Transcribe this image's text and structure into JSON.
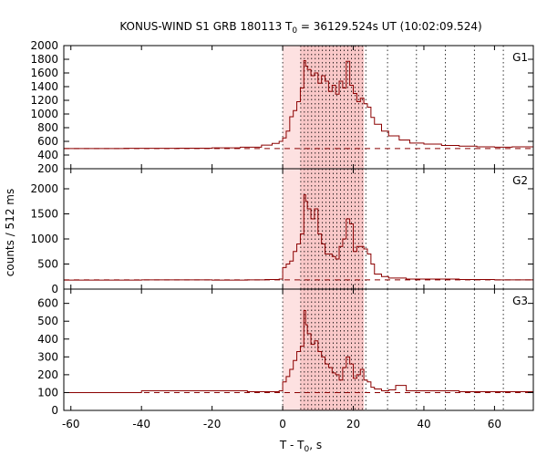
{
  "chart_data": {
    "type": "line",
    "title_main": "KONUS-WIND S1 GRB 180113 T",
    "title_sub": "0",
    "title_rest": " = 36129.524s UT (10:02:09.524)",
    "ylabel": "counts / 512 ms",
    "xlabel_main": "T - T",
    "xlabel_sub": "0",
    "xlabel_rest": ", s",
    "xlim": [
      -62,
      71
    ],
    "x_ticks": [
      -60,
      -40,
      -20,
      0,
      20,
      40,
      60
    ],
    "x_tick_labels": [
      "-60",
      "-40",
      "-20",
      "0",
      "20",
      "40",
      "60"
    ],
    "shaded_interval": [
      0.0,
      23.0
    ],
    "highlight_interval": [
      5.0,
      23.0
    ],
    "grid_lines_x": [
      0.0,
      5.12,
      6.14,
      7.17,
      8.19,
      9.22,
      10.24,
      11.26,
      12.29,
      13.31,
      14.34,
      15.36,
      16.38,
      17.41,
      18.43,
      19.46,
      20.48,
      21.5,
      22.53,
      23.55,
      29.7,
      37.9,
      46.1,
      54.3,
      62.5
    ],
    "line_color": "#8b0000",
    "shade_color": "#fde1e1",
    "highlight_color": "#f9c8c8",
    "panels": [
      {
        "name": "G1",
        "ylim": [
          200,
          2000
        ],
        "y_ticks": [
          200,
          400,
          600,
          800,
          1000,
          1200,
          1400,
          1600,
          1800,
          2000
        ],
        "y_tick_labels": [
          "200",
          "400",
          "600",
          "800",
          "1000",
          "1200",
          "1400",
          "1600",
          "1800",
          "2000"
        ],
        "background": 495,
        "series": {
          "x": [
            -62,
            -45,
            -30,
            -20,
            -12,
            -6,
            -3,
            -1,
            0,
            1,
            2,
            3,
            4,
            5,
            6,
            6.5,
            7,
            8,
            9,
            10,
            11,
            12,
            13,
            14,
            15,
            16,
            17,
            18,
            19,
            20,
            21,
            22,
            23,
            24,
            25,
            26,
            28,
            30,
            33,
            36,
            40,
            45,
            50,
            55,
            60,
            65,
            71
          ],
          "y": [
            495,
            498,
            500,
            505,
            515,
            545,
            570,
            600,
            650,
            750,
            960,
            1050,
            1180,
            1380,
            1780,
            1700,
            1650,
            1560,
            1600,
            1450,
            1560,
            1480,
            1330,
            1420,
            1290,
            1480,
            1380,
            1770,
            1420,
            1300,
            1180,
            1230,
            1150,
            1100,
            950,
            850,
            750,
            680,
            620,
            575,
            560,
            540,
            530,
            520,
            515,
            520,
            520
          ]
        }
      },
      {
        "name": "G2",
        "ylim": [
          0,
          2400
        ],
        "y_ticks": [
          0,
          500,
          1000,
          1500,
          2000
        ],
        "y_tick_labels": [
          "0",
          "500",
          "1000",
          "1500",
          "2000"
        ],
        "background": 185,
        "series": {
          "x": [
            -62,
            -40,
            -20,
            -10,
            -5,
            -1,
            0,
            1,
            2,
            3,
            4,
            5,
            6,
            6.5,
            7,
            8,
            9,
            10,
            11,
            12,
            13,
            14,
            15,
            16,
            17,
            18,
            19,
            20,
            21,
            22,
            23,
            24,
            25,
            26,
            28,
            30,
            35,
            40,
            50,
            60,
            71
          ],
          "y": [
            180,
            185,
            180,
            185,
            190,
            200,
            430,
            500,
            560,
            750,
            900,
            1100,
            1880,
            1750,
            1600,
            1400,
            1600,
            1100,
            900,
            700,
            700,
            650,
            600,
            850,
            1000,
            1400,
            1300,
            750,
            850,
            850,
            800,
            700,
            500,
            300,
            250,
            220,
            200,
            200,
            190,
            185,
            185
          ]
        }
      },
      {
        "name": "G3",
        "ylim": [
          0,
          680
        ],
        "y_ticks": [
          0,
          100,
          200,
          300,
          400,
          500,
          600
        ],
        "y_tick_labels": [
          "0",
          "100",
          "200",
          "300",
          "400",
          "500",
          "600"
        ],
        "background": 100,
        "series": {
          "x": [
            -62,
            -40,
            -20,
            -10,
            -5,
            -1,
            0,
            1,
            2,
            3,
            4,
            5,
            6,
            6.5,
            7,
            8,
            9,
            10,
            11,
            12,
            13,
            14,
            15,
            16,
            17,
            18,
            19,
            20,
            21,
            22,
            23,
            24,
            25,
            26,
            28,
            30,
            32,
            35,
            40,
            50,
            60,
            71
          ],
          "y": [
            100,
            110,
            110,
            105,
            105,
            110,
            160,
            190,
            230,
            280,
            330,
            360,
            560,
            480,
            430,
            370,
            390,
            330,
            300,
            260,
            240,
            210,
            200,
            170,
            240,
            300,
            260,
            180,
            200,
            230,
            170,
            160,
            130,
            120,
            110,
            115,
            140,
            110,
            110,
            105,
            105,
            100
          ]
        }
      }
    ]
  }
}
